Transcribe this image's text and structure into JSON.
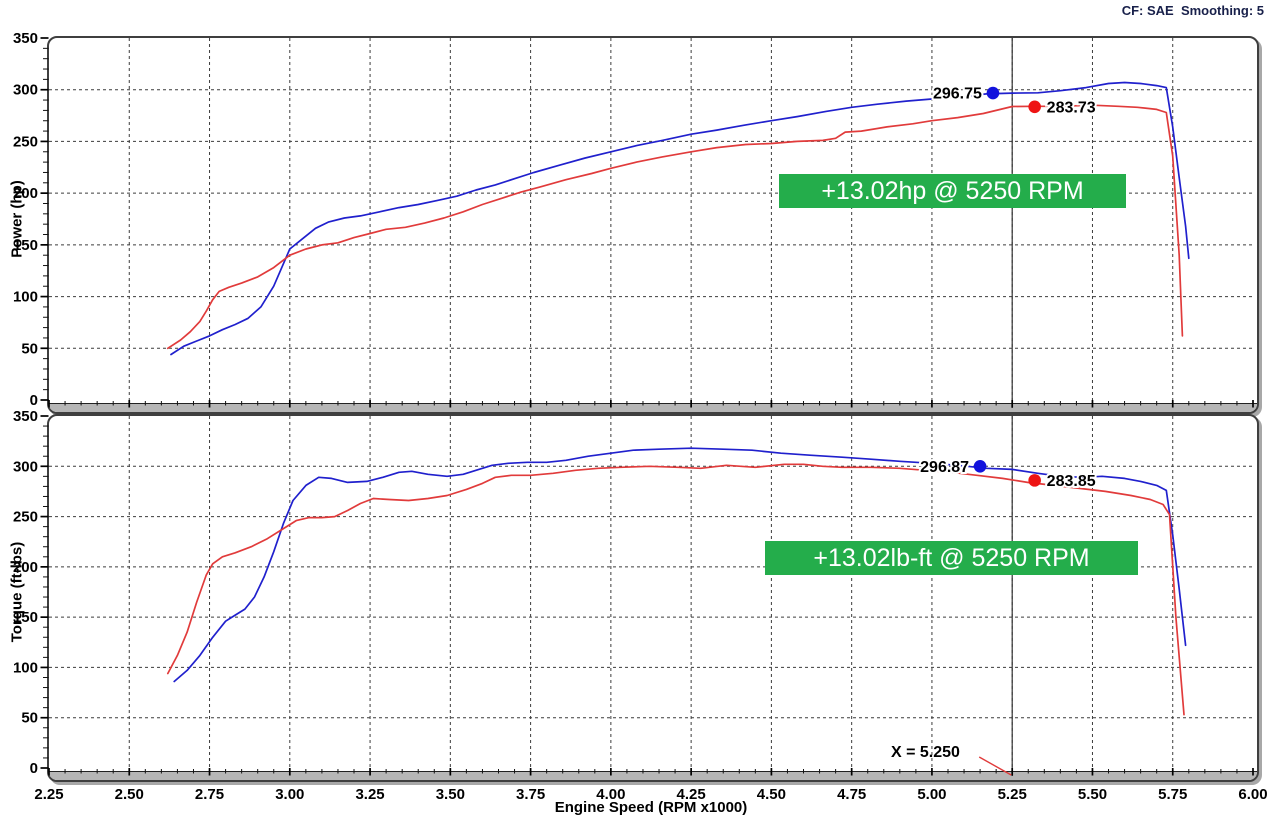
{
  "header": {
    "settings": "CF: SAE  Smoothing: 5"
  },
  "cursor": {
    "x": 5.25,
    "label": "X = 5.250"
  },
  "colors": {
    "blue_curve": "#2020cd",
    "red_curve": "#e13b3b",
    "blue_marker": "#1212dd",
    "red_marker": "#ee1414",
    "annotation_green": "#24ad4b",
    "grid": "#3c3c3c",
    "band_gray": "#b6b6b6"
  },
  "chart_data": [
    {
      "type": "line",
      "ylabel": "Power (hp)",
      "xlabel": "Engine Speed (RPM x1000)",
      "xlim": [
        2.25,
        6.0
      ],
      "ylim": [
        0,
        350
      ],
      "x_tick_step": 0.25,
      "x_minor_step": 0.05,
      "y_tick_step": 50,
      "y_minor_step": 10,
      "grid": "dashed",
      "legend": "none",
      "cursor_x": 5.25,
      "annotation": {
        "label": "+13.02hp @ 5250 RPM",
        "color": "#24ad4b"
      },
      "markers": [
        {
          "label": "296.75",
          "dot_rpm": 5.19,
          "dot_value": 296.8,
          "side": "left",
          "color": "#1212dd"
        },
        {
          "label": "283.73",
          "dot_rpm": 5.32,
          "dot_value": 283.5,
          "side": "right",
          "color": "#ee1414"
        }
      ],
      "series": [
        {
          "name": "blue",
          "color": "#2020cd",
          "points": [
            [
              2.63,
              44
            ],
            [
              2.67,
              52
            ],
            [
              2.71,
              57
            ],
            [
              2.75,
              62
            ],
            [
              2.79,
              68
            ],
            [
              2.83,
              73
            ],
            [
              2.87,
              79
            ],
            [
              2.91,
              90
            ],
            [
              2.95,
              110
            ],
            [
              3.0,
              146
            ],
            [
              3.04,
              156
            ],
            [
              3.08,
              166
            ],
            [
              3.12,
              172
            ],
            [
              3.17,
              176
            ],
            [
              3.22,
              178
            ],
            [
              3.28,
              182
            ],
            [
              3.34,
              186
            ],
            [
              3.4,
              189
            ],
            [
              3.46,
              193
            ],
            [
              3.52,
              197
            ],
            [
              3.58,
              203
            ],
            [
              3.64,
              208
            ],
            [
              3.7,
              214
            ],
            [
              3.76,
              220
            ],
            [
              3.84,
              227
            ],
            [
              3.92,
              234
            ],
            [
              4.0,
              240
            ],
            [
              4.08,
              246
            ],
            [
              4.16,
              251
            ],
            [
              4.25,
              257
            ],
            [
              4.33,
              261
            ],
            [
              4.42,
              266
            ],
            [
              4.5,
              270
            ],
            [
              4.58,
              274
            ],
            [
              4.67,
              279
            ],
            [
              4.75,
              283
            ],
            [
              4.83,
              286
            ],
            [
              4.92,
              289
            ],
            [
              5.0,
              291
            ],
            [
              5.08,
              293
            ],
            [
              5.17,
              296
            ],
            [
              5.25,
              296.75
            ],
            [
              5.33,
              297
            ],
            [
              5.4,
              299
            ],
            [
              5.48,
              302
            ],
            [
              5.55,
              306
            ],
            [
              5.6,
              307
            ],
            [
              5.65,
              306
            ],
            [
              5.7,
              304
            ],
            [
              5.73,
              302
            ],
            [
              5.75,
              264
            ],
            [
              5.77,
              215
            ],
            [
              5.79,
              168
            ],
            [
              5.8,
              137
            ]
          ]
        },
        {
          "name": "red",
          "color": "#e13b3b",
          "points": [
            [
              2.62,
              50
            ],
            [
              2.66,
              58
            ],
            [
              2.69,
              66
            ],
            [
              2.72,
              76
            ],
            [
              2.74,
              86
            ],
            [
              2.76,
              97
            ],
            [
              2.78,
              105
            ],
            [
              2.81,
              109
            ],
            [
              2.85,
              113
            ],
            [
              2.9,
              119
            ],
            [
              2.95,
              128
            ],
            [
              3.0,
              140
            ],
            [
              3.05,
              146
            ],
            [
              3.1,
              150
            ],
            [
              3.15,
              152
            ],
            [
              3.2,
              157
            ],
            [
              3.25,
              161
            ],
            [
              3.3,
              165
            ],
            [
              3.36,
              167
            ],
            [
              3.42,
              171
            ],
            [
              3.48,
              176
            ],
            [
              3.54,
              182
            ],
            [
              3.6,
              189
            ],
            [
              3.66,
              195
            ],
            [
              3.72,
              201
            ],
            [
              3.78,
              206
            ],
            [
              3.86,
              213
            ],
            [
              3.94,
              219
            ],
            [
              4.0,
              224
            ],
            [
              4.08,
              230
            ],
            [
              4.16,
              235
            ],
            [
              4.25,
              240
            ],
            [
              4.33,
              244
            ],
            [
              4.42,
              247
            ],
            [
              4.5,
              248
            ],
            [
              4.58,
              250
            ],
            [
              4.66,
              251
            ],
            [
              4.7,
              253
            ],
            [
              4.73,
              259
            ],
            [
              4.78,
              260
            ],
            [
              4.86,
              264
            ],
            [
              4.94,
              267
            ],
            [
              5.0,
              270
            ],
            [
              5.08,
              273
            ],
            [
              5.16,
              277
            ],
            [
              5.25,
              283.73
            ],
            [
              5.32,
              284
            ],
            [
              5.4,
              284
            ],
            [
              5.5,
              285
            ],
            [
              5.58,
              284
            ],
            [
              5.64,
              283
            ],
            [
              5.7,
              281
            ],
            [
              5.73,
              278
            ],
            [
              5.75,
              236
            ],
            [
              5.77,
              140
            ],
            [
              5.78,
              62
            ]
          ]
        }
      ]
    },
    {
      "type": "line",
      "ylabel": "Torque (ft-lbs)",
      "xlabel": "Engine Speed (RPM x1000)",
      "xlim": [
        2.25,
        6.0
      ],
      "ylim": [
        0,
        350
      ],
      "x_tick_step": 0.25,
      "x_minor_step": 0.05,
      "y_tick_step": 50,
      "y_minor_step": 10,
      "grid": "dashed",
      "legend": "none",
      "cursor_x": 5.25,
      "annotation": {
        "label": "+13.02lb-ft @ 5250 RPM",
        "color": "#24ad4b"
      },
      "markers": [
        {
          "label": "296.87",
          "dot_rpm": 5.15,
          "dot_value": 300,
          "side": "left",
          "color": "#1212dd"
        },
        {
          "label": "283.85",
          "dot_rpm": 5.32,
          "dot_value": 286,
          "side": "right",
          "color": "#ee1414"
        }
      ],
      "series": [
        {
          "name": "blue",
          "color": "#2020cd",
          "points": [
            [
              2.64,
              86
            ],
            [
              2.68,
              97
            ],
            [
              2.72,
              112
            ],
            [
              2.76,
              130
            ],
            [
              2.8,
              146
            ],
            [
              2.83,
              152
            ],
            [
              2.86,
              158
            ],
            [
              2.89,
              170
            ],
            [
              2.92,
              190
            ],
            [
              2.95,
              215
            ],
            [
              2.98,
              243
            ],
            [
              3.01,
              266
            ],
            [
              3.05,
              281
            ],
            [
              3.09,
              289
            ],
            [
              3.13,
              288
            ],
            [
              3.18,
              284
            ],
            [
              3.24,
              285
            ],
            [
              3.29,
              289
            ],
            [
              3.34,
              294
            ],
            [
              3.38,
              295
            ],
            [
              3.43,
              292
            ],
            [
              3.49,
              290
            ],
            [
              3.54,
              292
            ],
            [
              3.59,
              297
            ],
            [
              3.63,
              301
            ],
            [
              3.68,
              303
            ],
            [
              3.74,
              304
            ],
            [
              3.8,
              304
            ],
            [
              3.86,
              306
            ],
            [
              3.93,
              310
            ],
            [
              4.0,
              313
            ],
            [
              4.07,
              316
            ],
            [
              4.15,
              317
            ],
            [
              4.25,
              318
            ],
            [
              4.35,
              317
            ],
            [
              4.44,
              316
            ],
            [
              4.53,
              313
            ],
            [
              4.62,
              311
            ],
            [
              4.72,
              309
            ],
            [
              4.81,
              307
            ],
            [
              4.9,
              305
            ],
            [
              5.0,
              303
            ],
            [
              5.08,
              301
            ],
            [
              5.17,
              298
            ],
            [
              5.25,
              296.87
            ],
            [
              5.33,
              293
            ],
            [
              5.4,
              290
            ],
            [
              5.47,
              289
            ],
            [
              5.53,
              290
            ],
            [
              5.6,
              288
            ],
            [
              5.65,
              285
            ],
            [
              5.7,
              281
            ],
            [
              5.73,
              276
            ],
            [
              5.75,
              232
            ],
            [
              5.77,
              178
            ],
            [
              5.79,
              122
            ]
          ]
        },
        {
          "name": "red",
          "color": "#e13b3b",
          "points": [
            [
              2.62,
              94
            ],
            [
              2.65,
              112
            ],
            [
              2.68,
              135
            ],
            [
              2.71,
              165
            ],
            [
              2.74,
              192
            ],
            [
              2.76,
              203
            ],
            [
              2.79,
              210
            ],
            [
              2.83,
              214
            ],
            [
              2.88,
              220
            ],
            [
              2.93,
              228
            ],
            [
              2.98,
              238
            ],
            [
              3.02,
              246
            ],
            [
              3.06,
              249
            ],
            [
              3.1,
              249
            ],
            [
              3.14,
              250
            ],
            [
              3.18,
              256
            ],
            [
              3.22,
              263
            ],
            [
              3.26,
              268
            ],
            [
              3.31,
              267
            ],
            [
              3.37,
              266
            ],
            [
              3.43,
              268
            ],
            [
              3.49,
              271
            ],
            [
              3.55,
              277
            ],
            [
              3.6,
              283
            ],
            [
              3.64,
              289
            ],
            [
              3.69,
              291
            ],
            [
              3.75,
              291
            ],
            [
              3.82,
              293
            ],
            [
              3.89,
              296
            ],
            [
              3.96,
              298
            ],
            [
              4.03,
              299
            ],
            [
              4.12,
              300
            ],
            [
              4.21,
              299
            ],
            [
              4.28,
              298
            ],
            [
              4.36,
              301
            ],
            [
              4.45,
              299
            ],
            [
              4.54,
              302
            ],
            [
              4.6,
              302
            ],
            [
              4.66,
              300
            ],
            [
              4.72,
              299
            ],
            [
              4.81,
              299
            ],
            [
              4.9,
              298
            ],
            [
              4.98,
              296
            ],
            [
              5.06,
              294
            ],
            [
              5.14,
              291
            ],
            [
              5.22,
              288
            ],
            [
              5.3,
              283.85
            ],
            [
              5.38,
              281
            ],
            [
              5.46,
              278
            ],
            [
              5.54,
              275
            ],
            [
              5.62,
              271
            ],
            [
              5.68,
              267
            ],
            [
              5.72,
              262
            ],
            [
              5.74,
              252
            ],
            [
              5.76,
              150
            ],
            [
              5.785,
              53
            ]
          ]
        }
      ]
    }
  ]
}
